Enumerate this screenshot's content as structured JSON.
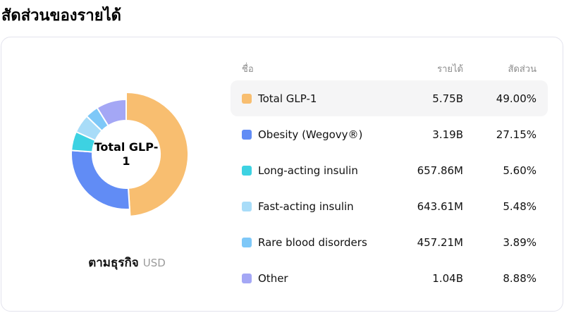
{
  "page": {
    "title": "สัดส่วนของรายได้"
  },
  "table": {
    "headers": {
      "name": "ชื่อ",
      "revenue": "รายได้",
      "share": "สัดส่วน"
    },
    "rows": [
      {
        "name": "Total GLP-1",
        "revenue": "5.75B",
        "share": "49.00%",
        "color": "#f8be70",
        "highlighted": true
      },
      {
        "name": "Obesity (Wegovy®)",
        "revenue": "3.19B",
        "share": "27.15%",
        "color": "#618cf5",
        "highlighted": false
      },
      {
        "name": "Long-acting insulin",
        "revenue": "657.86M",
        "share": "5.60%",
        "color": "#3dd2e2",
        "highlighted": false
      },
      {
        "name": "Fast-acting insulin",
        "revenue": "643.61M",
        "share": "5.48%",
        "color": "#a8dcf8",
        "highlighted": false
      },
      {
        "name": "Rare blood disorders",
        "revenue": "457.21M",
        "share": "3.89%",
        "color": "#7ec8f8",
        "highlighted": false
      },
      {
        "name": "Other",
        "revenue": "1.04B",
        "share": "8.88%",
        "color": "#a4a7f5",
        "highlighted": false
      }
    ]
  },
  "chart": {
    "center_label": "Total GLP-1",
    "footer_label": "ตามธุรกิจ",
    "footer_unit": "USD"
  },
  "chart_data": {
    "type": "pie",
    "subtype": "donut",
    "title": "สัดส่วนของรายได้",
    "categories": [
      "Total GLP-1",
      "Obesity (Wegovy®)",
      "Long-acting insulin",
      "Fast-acting insulin",
      "Rare blood disorders",
      "Other"
    ],
    "values_label": [
      "5.75B",
      "3.19B",
      "657.86M",
      "643.61M",
      "457.21M",
      "1.04B"
    ],
    "values_pct": [
      49.0,
      27.15,
      5.6,
      5.48,
      3.89,
      8.88
    ],
    "colors": [
      "#f8be70",
      "#618cf5",
      "#3dd2e2",
      "#a8dcf8",
      "#7ec8f8",
      "#a4a7f5"
    ],
    "unit": "USD",
    "center_label": "Total GLP-1",
    "start_angle_deg": 0,
    "direction": "clockwise",
    "legend_position": "right-table",
    "highlighted_index": 0,
    "inner_radius": 48,
    "outer_radius": 78,
    "outer_radius_highlighted": 88
  }
}
